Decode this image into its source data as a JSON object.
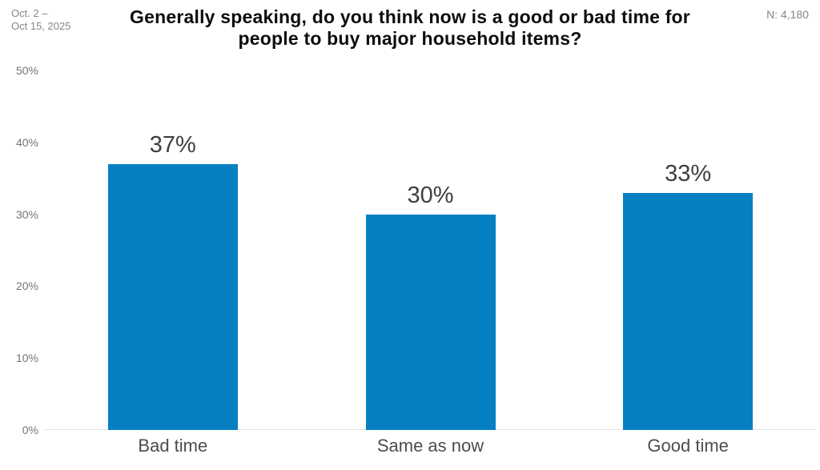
{
  "header": {
    "date_range_line1": "Oct. 2 –",
    "date_range_line2": "Oct 15, 2025",
    "title_lines": [
      "Generally speaking, do you think now is a good or bad time for",
      "people to buy major household items?"
    ],
    "sample_size": "N: 4,180"
  },
  "chart_data": {
    "type": "bar",
    "title": "Generally speaking, do you think now is a good or bad time for people to buy major household items?",
    "categories": [
      "Bad time",
      "Same as now",
      "Good time"
    ],
    "values": [
      37,
      30,
      33
    ],
    "value_labels": [
      "37%",
      "30%",
      "33%"
    ],
    "xlabel": "",
    "ylabel": "",
    "ylim": [
      0,
      50
    ],
    "yticks": [
      {
        "value": 0,
        "label": "0%"
      },
      {
        "value": 10,
        "label": "10%"
      },
      {
        "value": 20,
        "label": "20%"
      },
      {
        "value": 30,
        "label": "30%"
      },
      {
        "value": 40,
        "label": "40%"
      },
      {
        "value": 50,
        "label": "50%"
      }
    ],
    "grid": "baseline-only",
    "legend": "none",
    "bar_color": "#0680c2"
  }
}
